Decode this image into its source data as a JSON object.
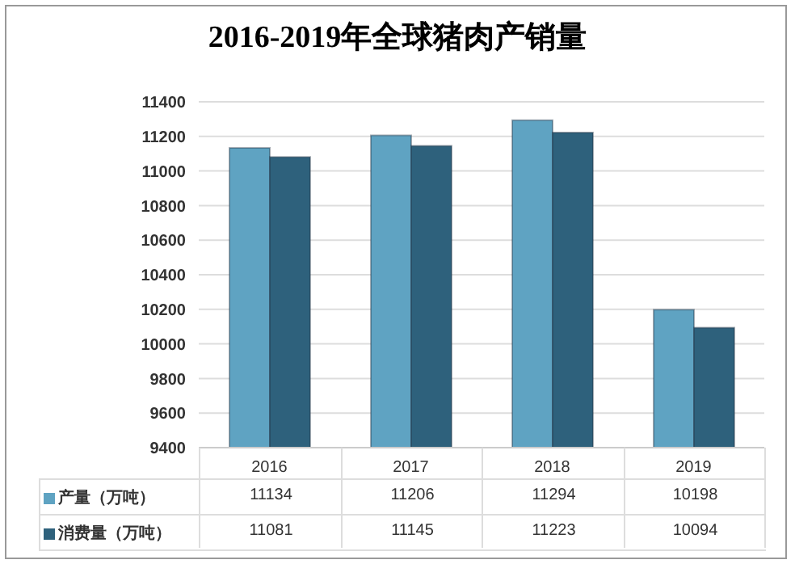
{
  "chart_data": {
    "type": "bar",
    "title": "2016-2019年全球猪肉产销量",
    "categories": [
      "2016",
      "2017",
      "2018",
      "2019"
    ],
    "series": [
      {
        "name": "产量（万吨）",
        "color": "#5fa3c2",
        "values": [
          11134,
          11206,
          11294,
          10198
        ]
      },
      {
        "name": "消费量（万吨）",
        "color": "#2e617c",
        "values": [
          11081,
          11145,
          11223,
          10094
        ]
      }
    ],
    "ylim": [
      9400,
      11400
    ],
    "yticks": [
      9400,
      9600,
      9800,
      10000,
      10200,
      10400,
      10600,
      10800,
      11000,
      11200,
      11400
    ],
    "grid": "y",
    "legend": "bottom",
    "data_labels": true
  }
}
